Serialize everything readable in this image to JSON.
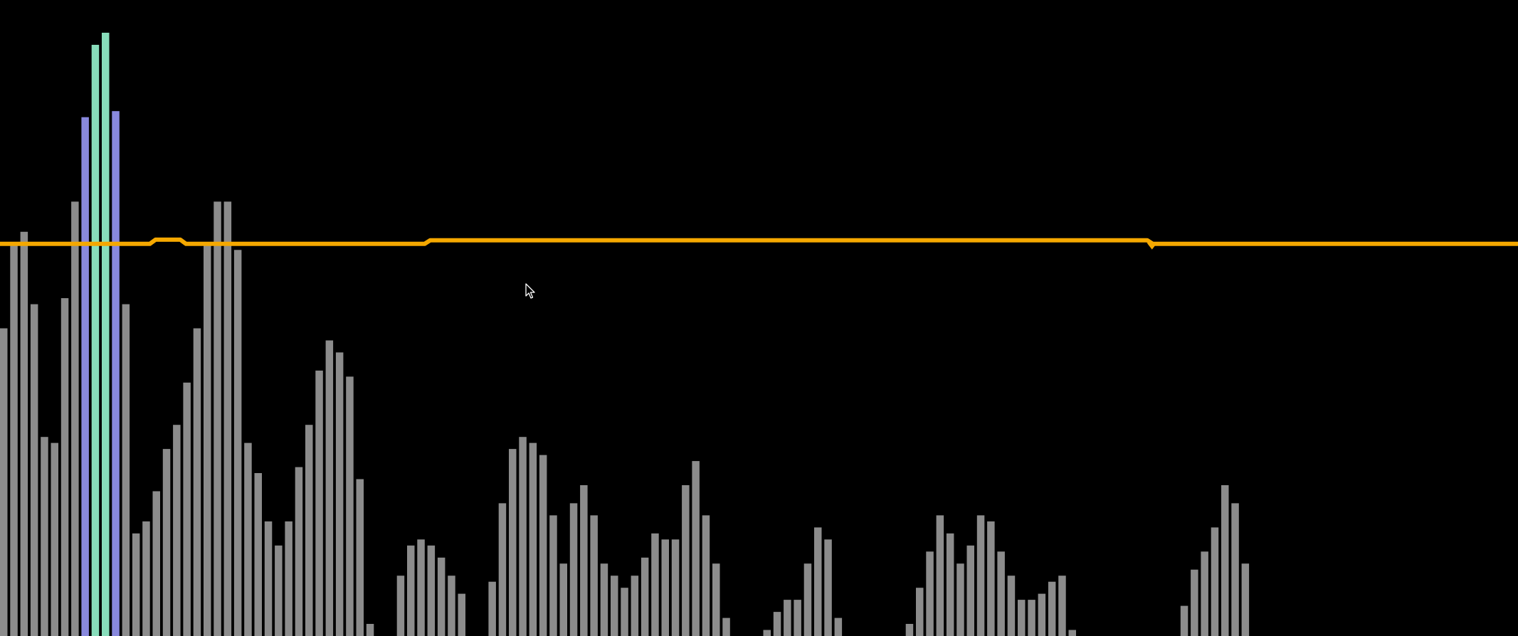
{
  "chart_data": {
    "type": "bar",
    "title": "",
    "xlabel": "",
    "ylabel": "",
    "ylim": [
      0,
      100
    ],
    "grid": false,
    "legend": "none",
    "colors": {
      "background": "#000000",
      "bar_default": "#8c8c8c",
      "bar_highlight_outer": "#8888dd",
      "bar_highlight_inner": "#88ddbb",
      "threshold_line": "#f5a800"
    },
    "highlight": {
      "outer": [
        8,
        11
      ],
      "inner": [
        9,
        10
      ]
    },
    "values": [
      51,
      65,
      67,
      55,
      33,
      32,
      56,
      72,
      86,
      98,
      100,
      87,
      55,
      17,
      19,
      24,
      31,
      35,
      42,
      51,
      65,
      72,
      72,
      64,
      32,
      27,
      19,
      15,
      19,
      28,
      35,
      44,
      49,
      47,
      43,
      26,
      2,
      0,
      0,
      10,
      15,
      16,
      15,
      13,
      10,
      7,
      0,
      0,
      9,
      22,
      31,
      33,
      32,
      30,
      20,
      12,
      22,
      25,
      20,
      12,
      10,
      8,
      10,
      13,
      17,
      16,
      16,
      25,
      29,
      20,
      12,
      3,
      0,
      0,
      0,
      1,
      4,
      6,
      6,
      12,
      18,
      16,
      3,
      0,
      0,
      0,
      0,
      0,
      0,
      2,
      8,
      14,
      20,
      17,
      12,
      15,
      20,
      19,
      14,
      10,
      6,
      6,
      7,
      9,
      10,
      1,
      0,
      0,
      0,
      0,
      0,
      0,
      0,
      0,
      0,
      0,
      5,
      11,
      14,
      18,
      25,
      22,
      12
    ],
    "threshold": {
      "value": 65,
      "segments": [
        {
          "x_from": 0,
          "x_to": 14,
          "value": 65
        },
        {
          "x_from": 15,
          "x_to": 17,
          "value": 65.7
        },
        {
          "x_from": 18,
          "x_to": 41,
          "value": 65
        },
        {
          "x_from": 42,
          "x_to": 112,
          "value": 65.6
        },
        {
          "x_from": 113,
          "x_to": 150,
          "value": 65
        }
      ],
      "dip_at": 112.5
    }
  },
  "cursor": {
    "name": "mouse-pointer-icon"
  }
}
